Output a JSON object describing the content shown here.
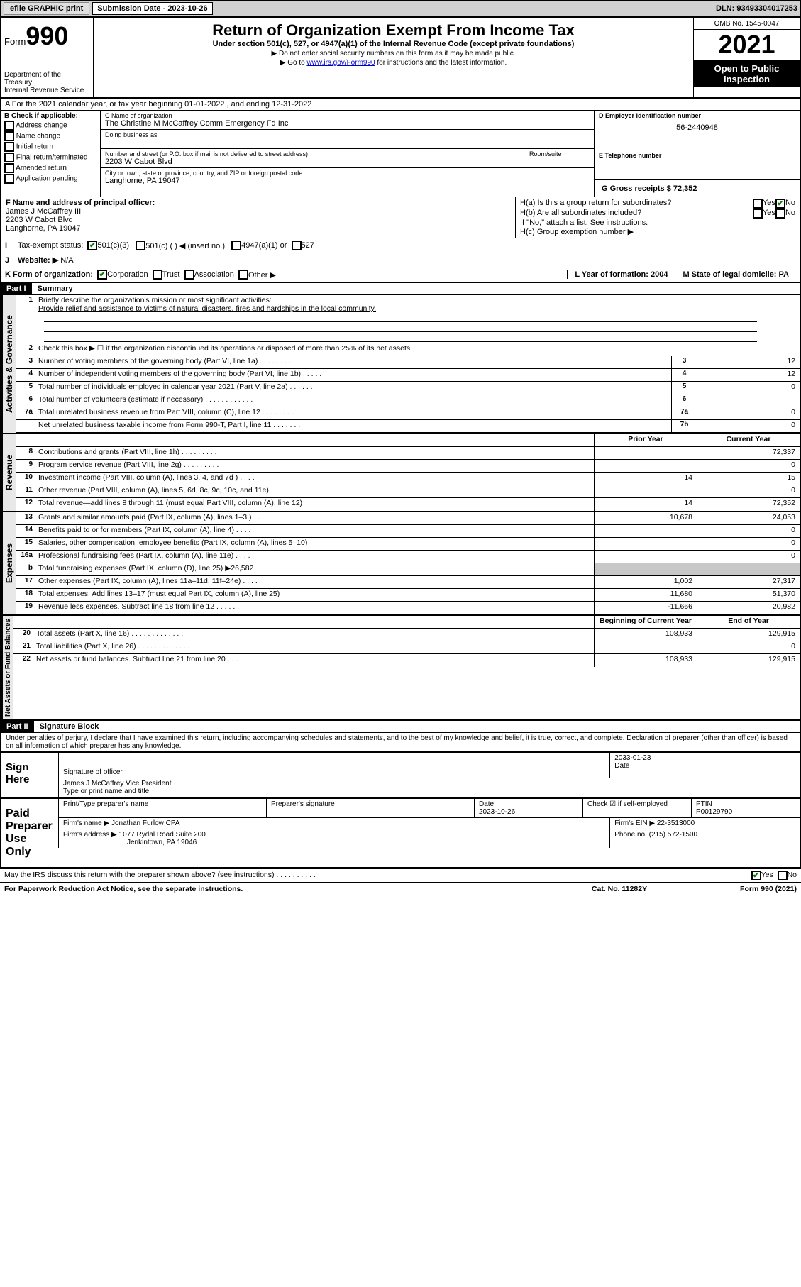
{
  "topbar": {
    "efile": "efile GRAPHIC print",
    "sub_label": "Submission Date - 2023-10-26",
    "dln": "DLN: 93493304017253"
  },
  "header": {
    "form_label": "Form",
    "form_no": "990",
    "dept": "Department of the Treasury",
    "irs": "Internal Revenue Service",
    "title": "Return of Organization Exempt From Income Tax",
    "sub": "Under section 501(c), 527, or 4947(a)(1) of the Internal Revenue Code (except private foundations)",
    "note1": "▶ Do not enter social security numbers on this form as it may be made public.",
    "note2_pre": "▶ Go to ",
    "note2_link": "www.irs.gov/Form990",
    "note2_post": " for instructions and the latest information.",
    "omb": "OMB No. 1545-0047",
    "year": "2021",
    "open": "Open to Public Inspection"
  },
  "row_a": "A For the 2021 calendar year, or tax year beginning 01-01-2022    , and ending 12-31-2022",
  "col_b": {
    "title": "B Check if applicable:",
    "items": [
      "Address change",
      "Name change",
      "Initial return",
      "Final return/terminated",
      "Amended return",
      "Application pending"
    ]
  },
  "col_c": {
    "name_lbl": "C Name of organization",
    "name": "The Christine M McCaffrey Comm Emergency Fd Inc",
    "dba_lbl": "Doing business as",
    "addr_lbl": "Number and street (or P.O. box if mail is not delivered to street address)",
    "room_lbl": "Room/suite",
    "addr": "2203 W Cabot Blvd",
    "city_lbl": "City or town, state or province, country, and ZIP or foreign postal code",
    "city": "Langhorne, PA   19047"
  },
  "col_d": {
    "ein_lbl": "D Employer identification number",
    "ein": "56-2440948",
    "tel_lbl": "E Telephone number",
    "gross_lbl": "G Gross receipts $ 72,352"
  },
  "row_f": {
    "lbl": "F Name and address of principal officer:",
    "name": "James J McCaffrey III",
    "addr1": "2203 W Cabot Blvd",
    "addr2": "Langhorne, PA   19047"
  },
  "row_h": {
    "ha": "H(a)  Is this a group return for subordinates?",
    "hb": "H(b)  Are all subordinates included?",
    "note": "If \"No,\" attach a list. See instructions.",
    "hc": "H(c)  Group exemption number ▶",
    "yes": "Yes",
    "no": "No"
  },
  "row_i": {
    "lbl": "Tax-exempt status:",
    "c3": "501(c)(3)",
    "c": "501(c) (     ) ◀ (insert no.)",
    "a1": "4947(a)(1) or",
    "s527": "527"
  },
  "row_j": {
    "lbl": "Website: ▶",
    "val": "N/A"
  },
  "row_k": {
    "lbl": "K Form of organization:",
    "corp": "Corporation",
    "trust": "Trust",
    "assoc": "Association",
    "other": "Other ▶"
  },
  "row_l": {
    "lbl": "L Year of formation: 2004"
  },
  "row_m": {
    "lbl": "M State of legal domicile: PA"
  },
  "part1": {
    "hdr": "Part I",
    "title": "Summary",
    "l1_lbl": "Briefly describe the organization's mission or most significant activities:",
    "l1_txt": "Provide relief and assistance to victims of natural disasters, fires and hardships in the local community.",
    "l2": "Check this box ▶ ☐  if the organization discontinued its operations or disposed of more than 25% of its net assets.",
    "lines_gov": [
      {
        "n": "3",
        "t": "Number of voting members of the governing body (Part VI, line 1a)   .    .    .    .    .    .    .    .    .",
        "nc": "3",
        "v": "12"
      },
      {
        "n": "4",
        "t": "Number of independent voting members of the governing body (Part VI, line 1b)   .    .    .    .    .",
        "nc": "4",
        "v": "12"
      },
      {
        "n": "5",
        "t": "Total number of individuals employed in calendar year 2021 (Part V, line 2a)   .    .    .    .    .    .",
        "nc": "5",
        "v": "0"
      },
      {
        "n": "6",
        "t": "Total number of volunteers (estimate if necessary)    .    .    .    .    .    .    .    .    .    .    .    .",
        "nc": "6",
        "v": ""
      },
      {
        "n": "7a",
        "t": "Total unrelated business revenue from Part VIII, column (C), line 12   .    .    .    .    .    .    .    .",
        "nc": "7a",
        "v": "0"
      },
      {
        "n": "",
        "t": "Net unrelated business taxable income from Form 990-T, Part I, line 11   .    .    .    .    .    .    .",
        "nc": "7b",
        "v": "0"
      }
    ],
    "col_py": "Prior Year",
    "col_cy": "Current Year",
    "lines_rev": [
      {
        "n": "8",
        "t": "Contributions and grants (Part VIII, line 1h)    .    .    .    .    .    .    .    .    .",
        "py": "",
        "cy": "72,337"
      },
      {
        "n": "9",
        "t": "Program service revenue (Part VIII, line 2g)   .    .    .    .    .    .    .    .    .",
        "py": "",
        "cy": "0"
      },
      {
        "n": "10",
        "t": "Investment income (Part VIII, column (A), lines 3, 4, and 7d )   .    .    .    .",
        "py": "14",
        "cy": "15"
      },
      {
        "n": "11",
        "t": "Other revenue (Part VIII, column (A), lines 5, 6d, 8c, 9c, 10c, and 11e)",
        "py": "",
        "cy": "0"
      },
      {
        "n": "12",
        "t": "Total revenue—add lines 8 through 11 (must equal Part VIII, column (A), line 12)",
        "py": "14",
        "cy": "72,352"
      }
    ],
    "lines_exp": [
      {
        "n": "13",
        "t": "Grants and similar amounts paid (Part IX, column (A), lines 1–3 )   .    .    .",
        "py": "10,678",
        "cy": "24,053"
      },
      {
        "n": "14",
        "t": "Benefits paid to or for members (Part IX, column (A), line 4)   .    .    .    .",
        "py": "",
        "cy": "0"
      },
      {
        "n": "15",
        "t": "Salaries, other compensation, employee benefits (Part IX, column (A), lines 5–10)",
        "py": "",
        "cy": "0"
      },
      {
        "n": "16a",
        "t": "Professional fundraising fees (Part IX, column (A), line 11e)   .    .    .    .",
        "py": "",
        "cy": "0"
      },
      {
        "n": "b",
        "t": "Total fundraising expenses (Part IX, column (D), line 25) ▶26,582",
        "py": "shade",
        "cy": "shade"
      },
      {
        "n": "17",
        "t": "Other expenses (Part IX, column (A), lines 11a–11d, 11f–24e)   .    .    .    .",
        "py": "1,002",
        "cy": "27,317"
      },
      {
        "n": "18",
        "t": "Total expenses. Add lines 13–17 (must equal Part IX, column (A), line 25)",
        "py": "11,680",
        "cy": "51,370"
      },
      {
        "n": "19",
        "t": "Revenue less expenses. Subtract line 18 from line 12   .    .    .    .    .    .",
        "py": "-11,666",
        "cy": "20,982"
      }
    ],
    "col_boy": "Beginning of Current Year",
    "col_eoy": "End of Year",
    "lines_net": [
      {
        "n": "20",
        "t": "Total assets (Part X, line 16)   .    .    .    .    .    .    .    .    .    .    .    .    .",
        "py": "108,933",
        "cy": "129,915"
      },
      {
        "n": "21",
        "t": "Total liabilities (Part X, line 26)   .    .    .    .    .    .    .    .    .    .    .    .    .",
        "py": "",
        "cy": "0"
      },
      {
        "n": "22",
        "t": "Net assets or fund balances. Subtract line 21 from line 20   .    .    .    .    .",
        "py": "108,933",
        "cy": "129,915"
      }
    ],
    "side_gov": "Activities & Governance",
    "side_rev": "Revenue",
    "side_exp": "Expenses",
    "side_net": "Net Assets or Fund Balances"
  },
  "part2": {
    "hdr": "Part II",
    "title": "Signature Block",
    "perjury": "Under penalties of perjury, I declare that I have examined this return, including accompanying schedules and statements, and to the best of my knowledge and belief, it is true, correct, and complete. Declaration of preparer (other than officer) is based on all information of which preparer has any knowledge."
  },
  "sign": {
    "here": "Sign Here",
    "sig_lbl": "Signature of officer",
    "date_lbl": "Date",
    "date": "2033-01-23",
    "name": "James J McCaffrey  Vice President",
    "name_lbl": "Type or print name and title"
  },
  "paid": {
    "lbl": "Paid Preparer Use Only",
    "pname_lbl": "Print/Type preparer's name",
    "psig_lbl": "Preparer's signature",
    "pdate_lbl": "Date",
    "pdate": "2023-10-26",
    "chk_lbl": "Check ☑ if self-employed",
    "ptin_lbl": "PTIN",
    "ptin": "P00129790",
    "firm_lbl": "Firm's name    ▶",
    "firm": "Jonathan Furlow CPA",
    "fein_lbl": "Firm's EIN ▶",
    "fein": "22-3513000",
    "faddr_lbl": "Firm's address ▶",
    "faddr1": "1077 Rydal Road Suite 200",
    "faddr2": "Jenkintown, PA   19046",
    "phone_lbl": "Phone no.",
    "phone": "(215) 572-1500"
  },
  "footer": {
    "discuss": "May the IRS discuss this return with the preparer shown above? (see instructions)    .    .    .    .    .    .    .    .    .    .",
    "yes": "Yes",
    "no": "No",
    "pra": "For Paperwork Reduction Act Notice, see the separate instructions.",
    "cat": "Cat. No. 11282Y",
    "form": "Form 990 (2021)"
  }
}
